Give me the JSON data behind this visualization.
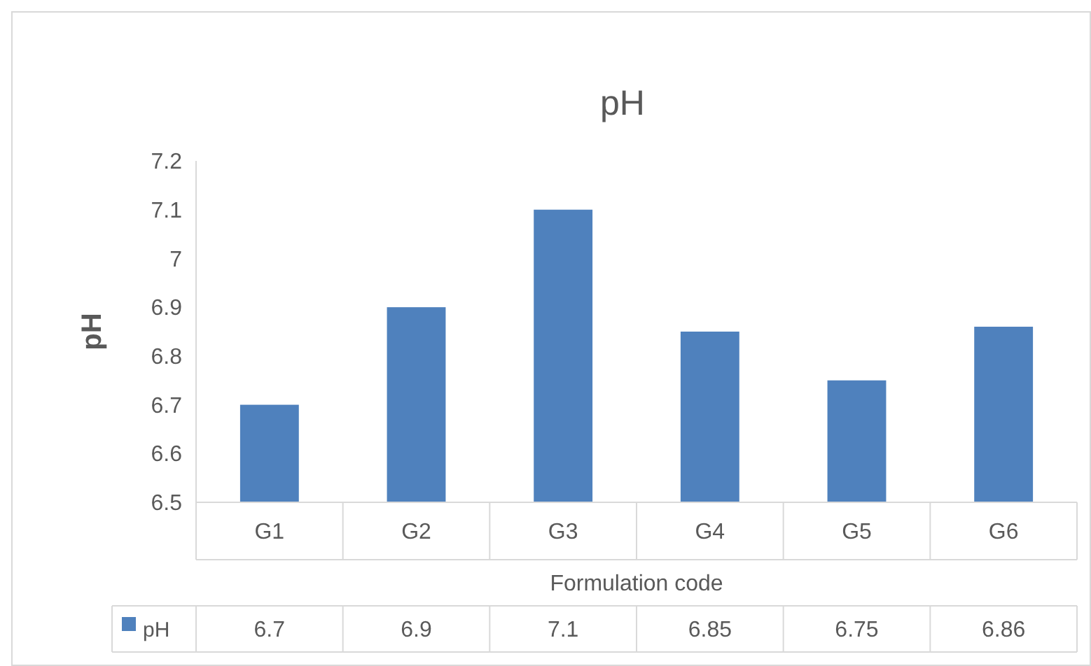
{
  "chart_data": {
    "type": "bar",
    "title": "pH",
    "xlabel": "Formulation code",
    "ylabel": "pH",
    "categories": [
      "G1",
      "G2",
      "G3",
      "G4",
      "G5",
      "G6"
    ],
    "series": [
      {
        "name": "pH",
        "color": "#4f81bd",
        "values": [
          6.7,
          6.9,
          7.1,
          6.85,
          6.75,
          6.86
        ]
      }
    ],
    "ylim": [
      6.5,
      7.2
    ],
    "yticks": [
      6.5,
      6.6,
      6.7,
      6.8,
      6.9,
      7,
      7.1,
      7.2
    ],
    "grid": false,
    "data_labels": true
  }
}
